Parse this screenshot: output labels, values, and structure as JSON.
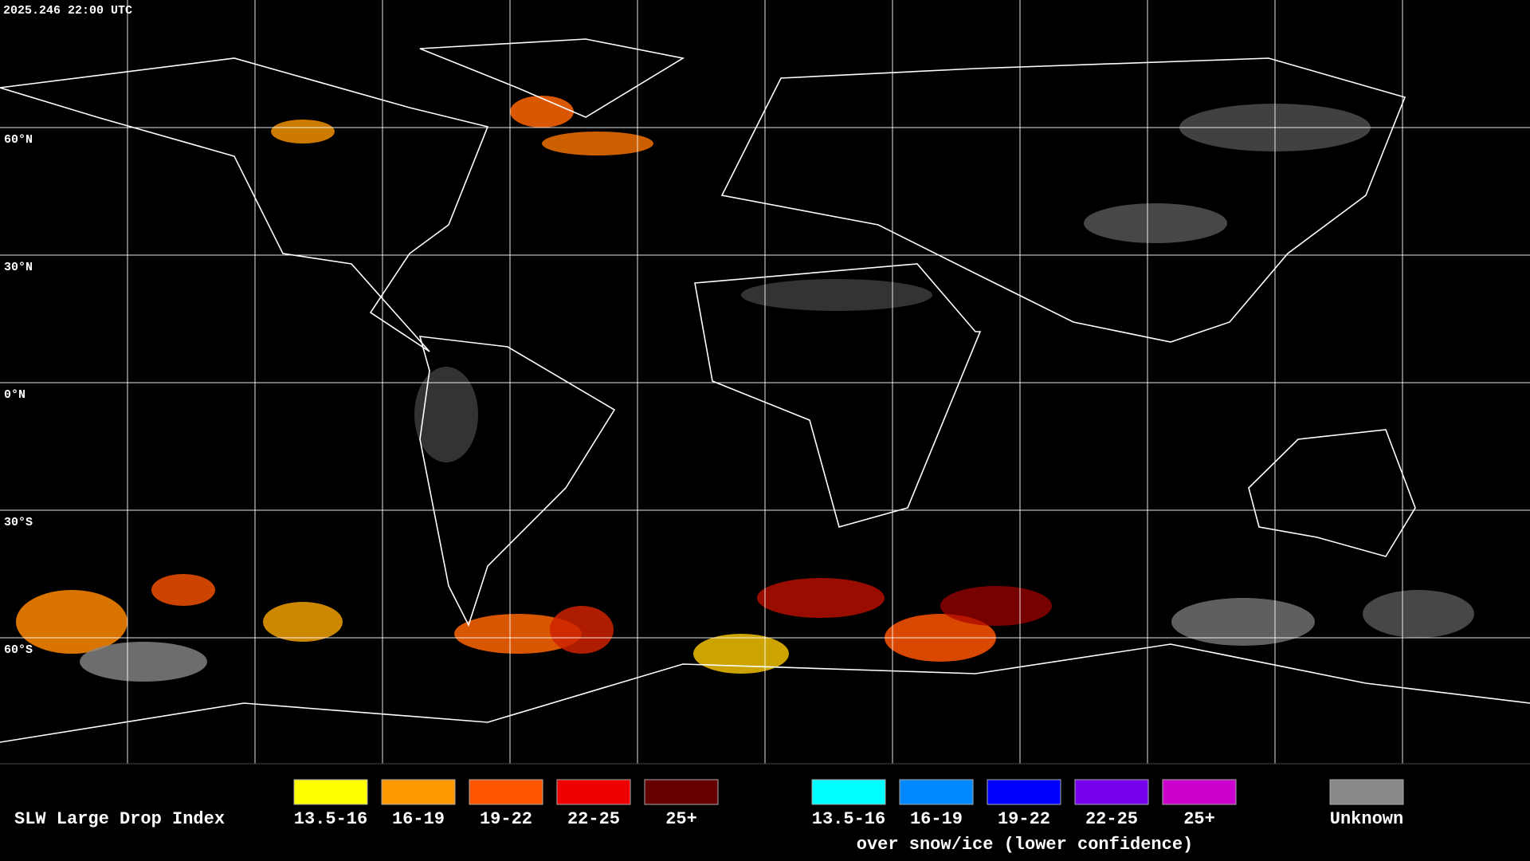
{
  "header": {
    "timestamp": "2025.246 22:00 UTC"
  },
  "map": {
    "latitude_labels": [
      "60°N",
      "30°N",
      "0°N",
      "30°S",
      "60°S"
    ]
  },
  "legend": {
    "title": "SLW Large Drop Index",
    "warm": [
      {
        "label": "13.5-16",
        "color": "#ffff00"
      },
      {
        "label": "16-19",
        "color": "#ff9900"
      },
      {
        "label": "19-22",
        "color": "#ff5500"
      },
      {
        "label": "22-25",
        "color": "#ee0000"
      },
      {
        "label": "25+",
        "color": "#660000"
      }
    ],
    "cold": [
      {
        "label": "13.5-16",
        "color": "#00ffff"
      },
      {
        "label": "16-19",
        "color": "#0088ff"
      },
      {
        "label": "19-22",
        "color": "#0000ff"
      },
      {
        "label": "22-25",
        "color": "#7700ee"
      },
      {
        "label": "25+",
        "color": "#cc00cc"
      }
    ],
    "cold_note": "over snow/ice (lower confidence)",
    "unknown": {
      "label": "Unknown",
      "color": "#888888"
    }
  }
}
